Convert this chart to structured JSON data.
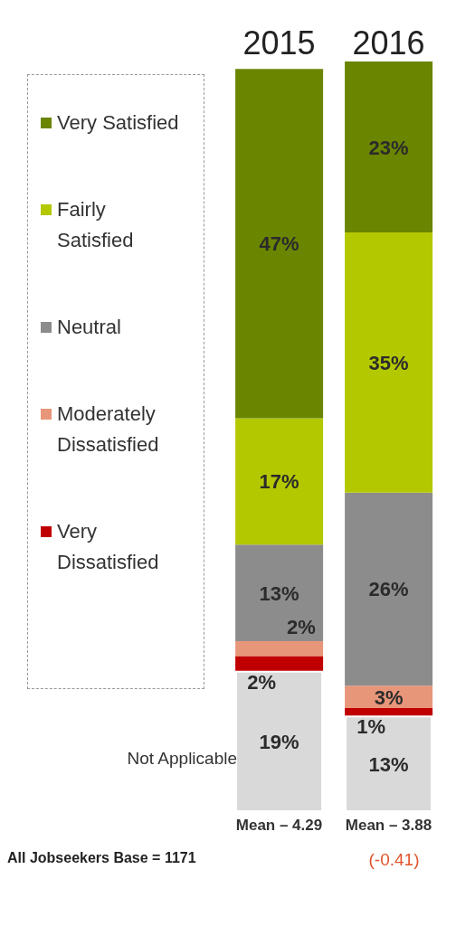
{
  "chart_data": {
    "type": "bar",
    "stacked": true,
    "categories": [
      "2015",
      "2016"
    ],
    "series": [
      {
        "name": "Not Applicable",
        "color": "#d9d9d9",
        "values": [
          19,
          13
        ],
        "value_labels": [
          "19%",
          "13%"
        ]
      },
      {
        "name": "Very Dissatisfied",
        "color": "#c00000",
        "values": [
          2,
          1
        ],
        "value_labels": [
          "2%",
          "1%"
        ]
      },
      {
        "name": "Moderately Dissatisfied",
        "color": "#e8967a",
        "values": [
          2,
          3
        ],
        "value_labels": [
          "2%",
          "3%"
        ]
      },
      {
        "name": "Neutral",
        "color": "#8c8c8c",
        "values": [
          13,
          26
        ],
        "value_labels": [
          "13%",
          "26%"
        ]
      },
      {
        "name": "Fairly Satisfied",
        "color": "#b4c800",
        "values": [
          17,
          35
        ],
        "value_labels": [
          "17%",
          "35%"
        ]
      },
      {
        "name": "Very Satisfied",
        "color": "#6a8500",
        "values": [
          47,
          23
        ],
        "value_labels": [
          "47%",
          "23%"
        ]
      }
    ],
    "legend": "left",
    "annotations": [
      "Mean – 4.29",
      "Mean – 3.88",
      "All Jobseekers Base = 1171",
      "(-0.41)"
    ]
  }
}
